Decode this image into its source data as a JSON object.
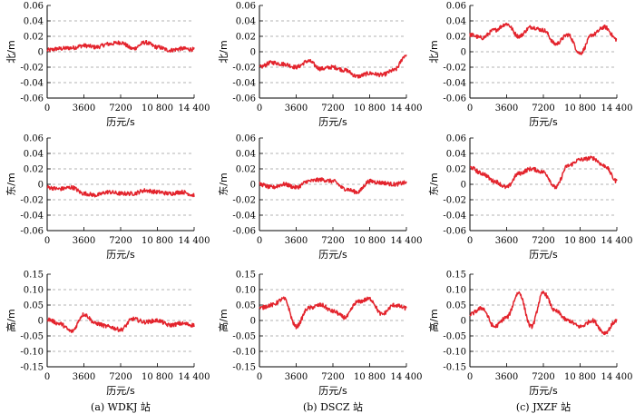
{
  "figure": {
    "captions": [
      "(a) WDKJ 站",
      "(b) DSCZ 站",
      "(c) JXZF 站"
    ]
  },
  "chart_data": [
    {
      "type": "line",
      "panel": "a-north",
      "station": "WDKJ",
      "xlabel": "历元/s",
      "ylabel": "北/m",
      "xlim": [
        0,
        14400
      ],
      "ylim": [
        -0.06,
        0.06
      ],
      "grid": "horizontal-dashed",
      "color": "#e3232c",
      "xticks": [
        "0",
        "3600",
        "7200",
        "10 800",
        "14 400"
      ],
      "yticks": [
        "0.06",
        "0.04",
        "0.02",
        "0",
        "-0.02",
        "-0.04",
        "-0.06"
      ],
      "series": [
        {
          "x": [
            0,
            1200,
            2400,
            3600,
            4800,
            6000,
            7200,
            8400,
            9600,
            10800,
            12000,
            13200,
            14400
          ],
          "y": [
            0.002,
            0.004,
            0.005,
            0.008,
            0.006,
            0.01,
            0.012,
            0.004,
            0.012,
            0.006,
            0.002,
            0.004,
            0.003
          ]
        }
      ]
    },
    {
      "type": "line",
      "panel": "b-north",
      "station": "DSCZ",
      "xlabel": "历元/s",
      "ylabel": "北/m",
      "xlim": [
        0,
        14400
      ],
      "ylim": [
        -0.06,
        0.06
      ],
      "grid": "horizontal-dashed",
      "color": "#e3232c",
      "xticks": [
        "0",
        "3600",
        "7200",
        "10 800",
        "14 400"
      ],
      "yticks": [
        "0.06",
        "0.04",
        "0.02",
        "0",
        "-0.02",
        "-0.04",
        "-0.06"
      ],
      "series": [
        {
          "x": [
            0,
            1200,
            2400,
            3600,
            4800,
            6000,
            7200,
            8400,
            9600,
            10800,
            12000,
            13200,
            14400
          ],
          "y": [
            -0.02,
            -0.014,
            -0.016,
            -0.02,
            -0.012,
            -0.022,
            -0.02,
            -0.024,
            -0.032,
            -0.028,
            -0.03,
            -0.024,
            -0.004
          ]
        }
      ]
    },
    {
      "type": "line",
      "panel": "c-north",
      "station": "JXZF",
      "xlabel": "历元/s",
      "ylabel": "北/m",
      "xlim": [
        0,
        14400
      ],
      "ylim": [
        -0.06,
        0.06
      ],
      "grid": "horizontal-dashed",
      "color": "#e3232c",
      "xticks": [
        "0",
        "3600",
        "7200",
        "10 800",
        "14 400"
      ],
      "yticks": [
        "0.06",
        "0.04",
        "0.02",
        "0",
        "-0.02",
        "-0.04",
        "-0.06"
      ],
      "series": [
        {
          "x": [
            0,
            1200,
            2400,
            3600,
            4800,
            6000,
            7200,
            8400,
            9600,
            10800,
            12000,
            13200,
            14400
          ],
          "y": [
            0.022,
            0.018,
            0.028,
            0.036,
            0.02,
            0.032,
            0.028,
            0.01,
            0.022,
            -0.002,
            0.022,
            0.032,
            0.016
          ]
        }
      ]
    },
    {
      "type": "line",
      "panel": "a-east",
      "station": "WDKJ",
      "xlabel": "历元/s",
      "ylabel": "东/m",
      "xlim": [
        0,
        14400
      ],
      "ylim": [
        -0.06,
        0.06
      ],
      "grid": "horizontal-dashed",
      "color": "#e3232c",
      "xticks": [
        "0",
        "3600",
        "7200",
        "10 800",
        "14 400"
      ],
      "yticks": [
        "0.06",
        "0.04",
        "0.02",
        "0",
        "-0.02",
        "-0.04",
        "-0.06"
      ],
      "series": [
        {
          "x": [
            0,
            1200,
            2400,
            3600,
            4800,
            6000,
            7200,
            8400,
            9600,
            10800,
            12000,
            13200,
            14400
          ],
          "y": [
            -0.004,
            -0.006,
            -0.004,
            -0.012,
            -0.014,
            -0.01,
            -0.012,
            -0.012,
            -0.008,
            -0.01,
            -0.012,
            -0.01,
            -0.014
          ]
        }
      ]
    },
    {
      "type": "line",
      "panel": "b-east",
      "station": "DSCZ",
      "xlabel": "历元/s",
      "ylabel": "东/m",
      "xlim": [
        0,
        14400
      ],
      "ylim": [
        -0.06,
        0.06
      ],
      "grid": "horizontal-dashed",
      "color": "#e3232c",
      "xticks": [
        "0",
        "3600",
        "7200",
        "10 800",
        "14 400"
      ],
      "yticks": [
        "0.06",
        "0.04",
        "0.02",
        "0",
        "-0.02",
        "-0.04",
        "-0.06"
      ],
      "series": [
        {
          "x": [
            0,
            1200,
            2400,
            3600,
            4800,
            6000,
            7200,
            8400,
            9600,
            10800,
            12000,
            13200,
            14400
          ],
          "y": [
            0.0,
            -0.004,
            0.0,
            -0.004,
            0.004,
            0.006,
            0.004,
            -0.006,
            -0.01,
            0.004,
            0.002,
            0.0,
            0.002
          ]
        }
      ]
    },
    {
      "type": "line",
      "panel": "c-east",
      "station": "JXZF",
      "xlabel": "历元/s",
      "ylabel": "东/m",
      "xlim": [
        0,
        14400
      ],
      "ylim": [
        -0.06,
        0.06
      ],
      "grid": "horizontal-dashed",
      "color": "#e3232c",
      "xticks": [
        "0",
        "3600",
        "7200",
        "10 800",
        "14 400"
      ],
      "yticks": [
        "0.06",
        "0.04",
        "0.02",
        "0",
        "-0.02",
        "-0.04",
        "-0.06"
      ],
      "series": [
        {
          "x": [
            0,
            1200,
            2400,
            3600,
            4800,
            6000,
            7200,
            8400,
            9600,
            10800,
            12000,
            13200,
            14400
          ],
          "y": [
            0.022,
            0.014,
            0.004,
            -0.004,
            0.014,
            0.02,
            0.016,
            -0.004,
            0.024,
            0.032,
            0.034,
            0.024,
            0.004
          ]
        }
      ]
    },
    {
      "type": "line",
      "panel": "a-up",
      "station": "WDKJ",
      "xlabel": "历元/s",
      "ylabel": "高/m",
      "xlim": [
        0,
        14400
      ],
      "ylim": [
        -0.15,
        0.15
      ],
      "grid": "horizontal-dashed",
      "color": "#e3232c",
      "xticks": [
        "0",
        "3600",
        "7200",
        "10 800",
        "14 400"
      ],
      "yticks": [
        "0.15",
        "0.10",
        "0.05",
        "0",
        "-0.05",
        "-0.10",
        "-0.15"
      ],
      "series": [
        {
          "x": [
            0,
            1200,
            2400,
            3600,
            4800,
            6000,
            7200,
            8400,
            9600,
            10800,
            12000,
            13200,
            14400
          ],
          "y": [
            0.004,
            -0.01,
            -0.035,
            0.02,
            -0.01,
            -0.02,
            -0.03,
            0.005,
            -0.005,
            0.0,
            -0.015,
            -0.01,
            -0.015
          ]
        }
      ]
    },
    {
      "type": "line",
      "panel": "b-up",
      "station": "DSCZ",
      "xlabel": "历元/s",
      "ylabel": "高/m",
      "xlim": [
        0,
        14400
      ],
      "ylim": [
        -0.15,
        0.15
      ],
      "grid": "horizontal-dashed",
      "color": "#e3232c",
      "xticks": [
        "0",
        "3600",
        "7200",
        "10 800",
        "14 400"
      ],
      "yticks": [
        "0.15",
        "0.10",
        "0.05",
        "0",
        "-0.05",
        "-0.10",
        "-0.15"
      ],
      "series": [
        {
          "x": [
            0,
            1200,
            2400,
            3600,
            4800,
            6000,
            7200,
            8400,
            9600,
            10800,
            12000,
            13200,
            14400
          ],
          "y": [
            0.04,
            0.05,
            0.07,
            -0.02,
            0.04,
            0.05,
            0.03,
            0.01,
            0.06,
            0.07,
            0.02,
            0.05,
            0.04
          ]
        }
      ]
    },
    {
      "type": "line",
      "panel": "c-up",
      "station": "JXZF",
      "xlabel": "历元/s",
      "ylabel": "高/m",
      "xlim": [
        0,
        14400
      ],
      "ylim": [
        -0.15,
        0.15
      ],
      "grid": "horizontal-dashed",
      "color": "#e3232c",
      "xticks": [
        "0",
        "3600",
        "7200",
        "10 800",
        "14 400"
      ],
      "yticks": [
        "0.15",
        "0.10",
        "0.05",
        "0",
        "-0.05",
        "-0.10",
        "-0.15"
      ],
      "series": [
        {
          "x": [
            0,
            1200,
            2400,
            3600,
            4800,
            6000,
            7200,
            8400,
            9600,
            10800,
            12000,
            13200,
            14400
          ],
          "y": [
            0.02,
            0.04,
            -0.02,
            0.01,
            0.09,
            -0.02,
            0.09,
            0.03,
            0.0,
            -0.02,
            0.0,
            -0.04,
            0.0
          ]
        }
      ]
    }
  ]
}
